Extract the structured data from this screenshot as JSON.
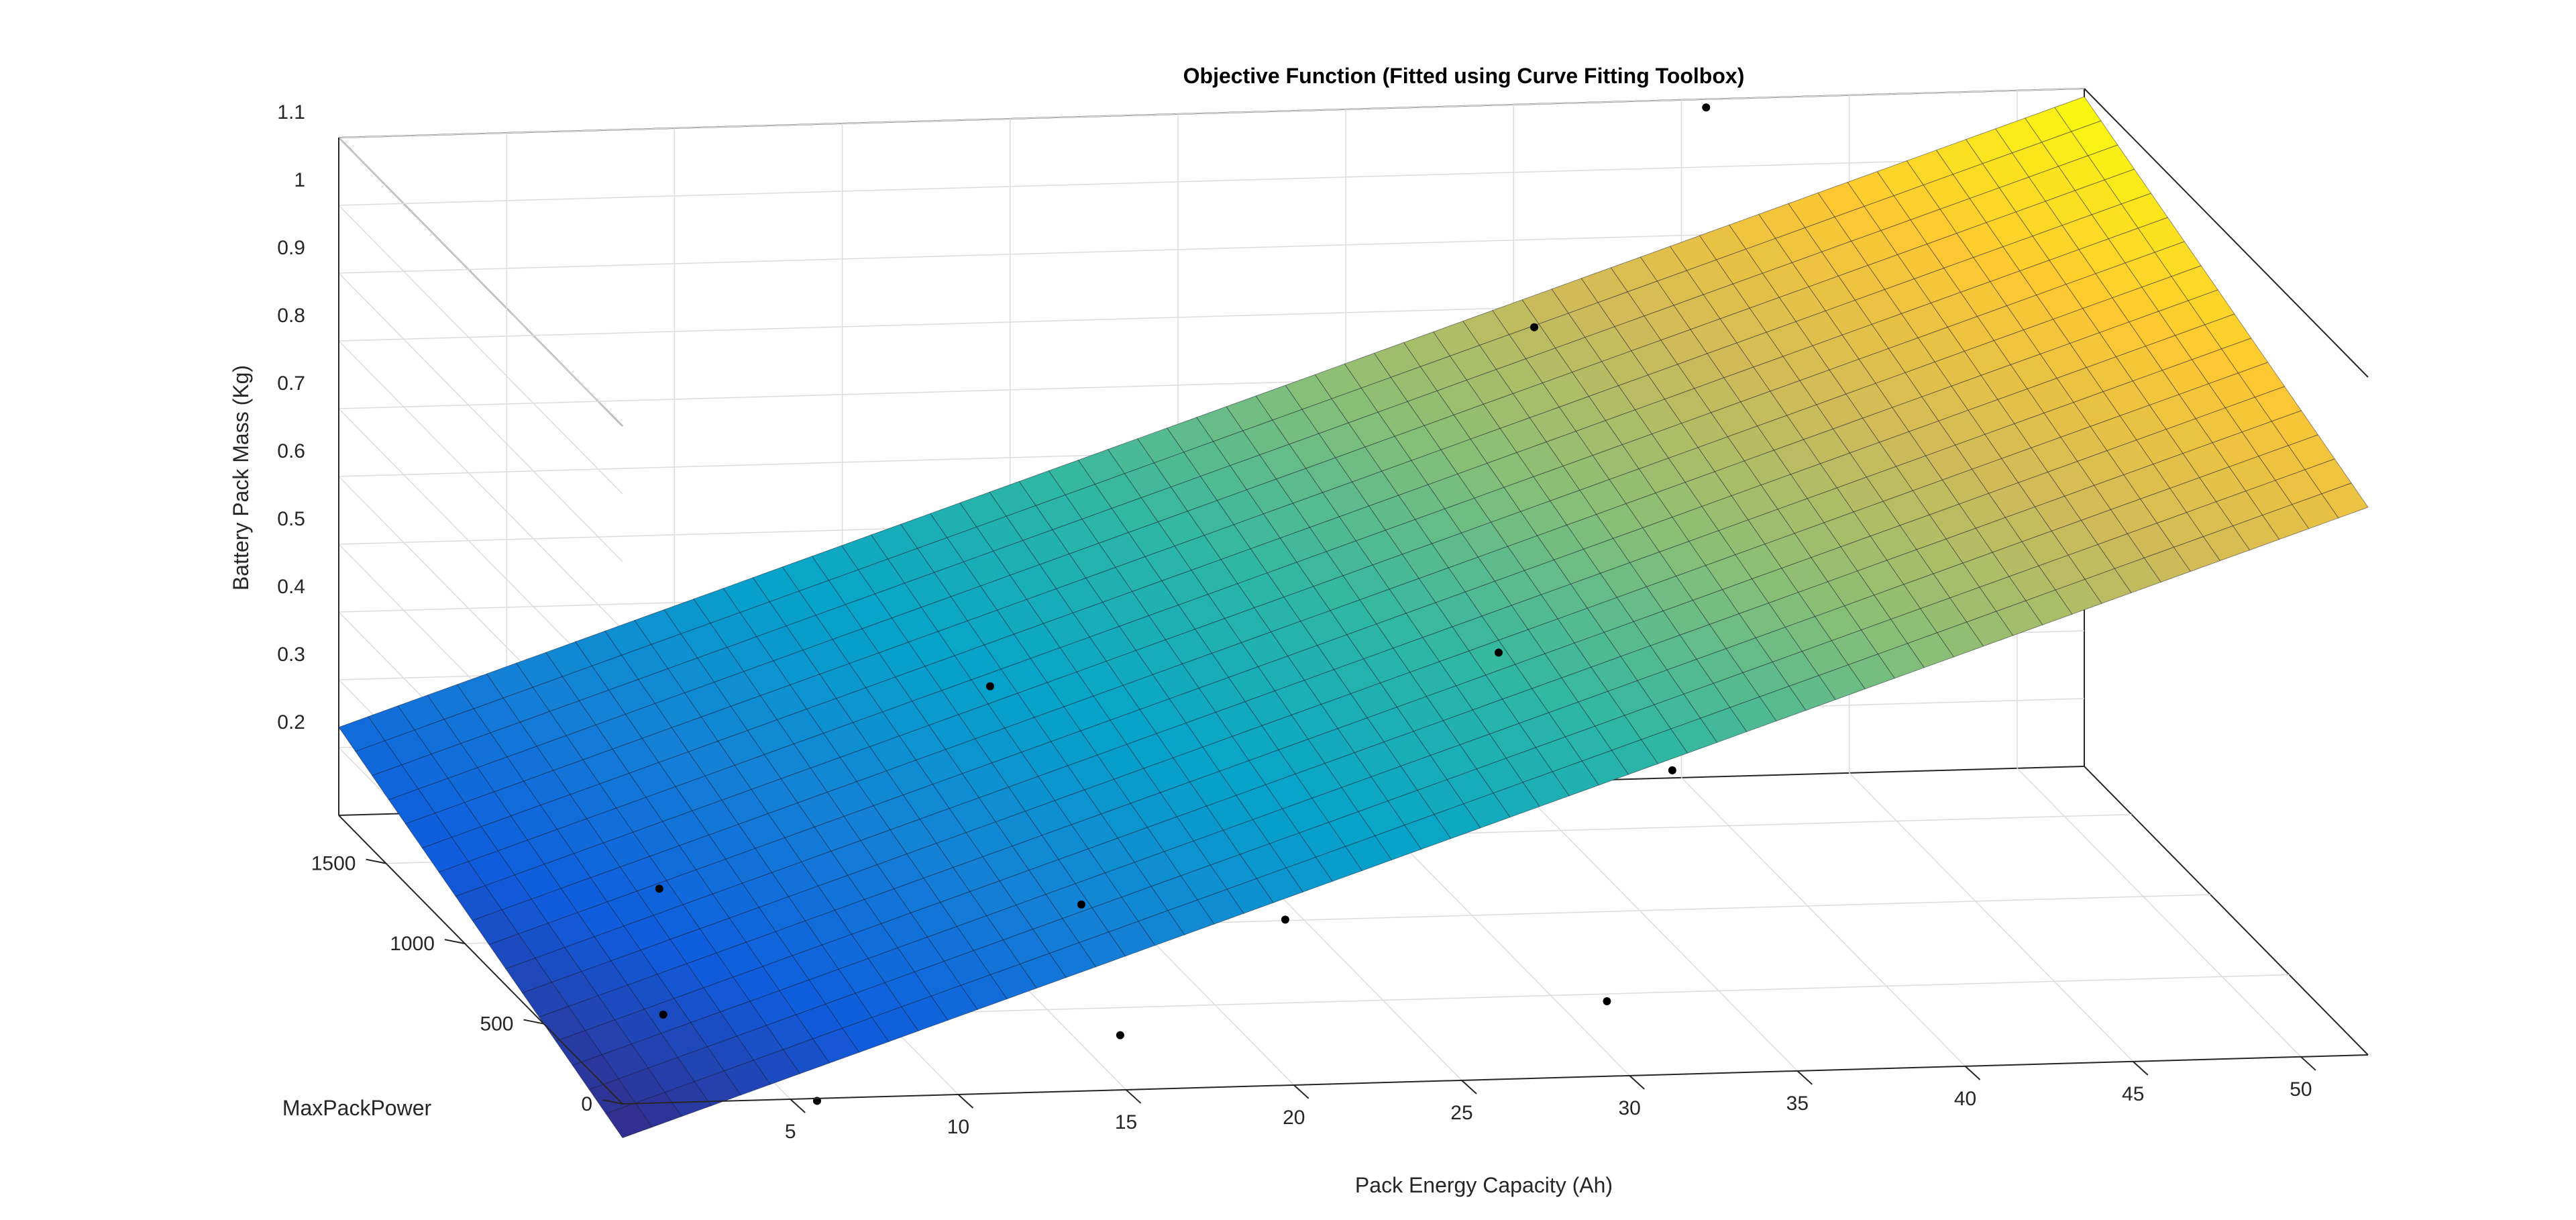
{
  "chart_data": {
    "type": "surface",
    "title": "Objective Function (Fitted using Curve Fitting Toolbox)",
    "xlabel": "Pack Energy Capacity (Ah)",
    "ylabel": "MaxPackPower",
    "zlabel": "Battery Pack Mass (Kg)",
    "xlim": [
      0,
      52
    ],
    "ylim": [
      0,
      1800
    ],
    "zlim": [
      0.1,
      1.1
    ],
    "x_ticks": [
      5,
      10,
      15,
      20,
      25,
      30,
      35,
      40,
      45,
      50
    ],
    "x_tick_labels": [
      "5",
      "10",
      "15",
      "20",
      "25",
      "30",
      "35",
      "40",
      "45",
      "50"
    ],
    "y_ticks": [
      0,
      500,
      1000,
      1500
    ],
    "y_tick_labels": [
      "0",
      "500",
      "1000",
      "1500"
    ],
    "z_ticks": [
      0.2,
      0.3,
      0.4,
      0.5,
      0.6,
      0.7,
      0.8,
      0.9,
      1.0,
      1.1
    ],
    "z_tick_labels": [
      "0.2",
      "0.3",
      "0.4",
      "0.5",
      "0.6",
      "0.7",
      "0.8",
      "0.9",
      "1",
      "1.1"
    ],
    "grid": true,
    "box": true,
    "colormap": "parula",
    "colormap_stops": [
      "#352a87",
      "#0f5cdd",
      "#1481d6",
      "#06a4ca",
      "#2eb7a4",
      "#87bf77",
      "#d1bb59",
      "#fec832",
      "#f9fb0e"
    ],
    "surface_fit": {
      "model": "linear",
      "z_at_origin": 0.05,
      "dz_dx": 0.0165,
      "dz_dy": 0.0001,
      "mesh_lines_x": 59,
      "mesh_lines_y": 17
    },
    "data_points": [
      {
        "x": 18.7,
        "y": 1650,
        "z": 0.3
      },
      {
        "x": 40.5,
        "y": 1750,
        "z": 1.1
      },
      {
        "x": 33.5,
        "y": 1350,
        "z": 0.88
      },
      {
        "x": 31.5,
        "y": 1150,
        "z": 0.45
      },
      {
        "x": 35.5,
        "y": 900,
        "z": 0.33
      },
      {
        "x": 7.2,
        "y": 1300,
        "z": 0.1
      },
      {
        "x": 18.6,
        "y": 1050,
        "z": 0.12
      },
      {
        "x": 23.5,
        "y": 800,
        "z": 0.15
      },
      {
        "x": 30.5,
        "y": 250,
        "z": 0.15
      },
      {
        "x": 16.0,
        "y": 250,
        "z": 0.12
      },
      {
        "x": 4.5,
        "y": 700,
        "z": 0.06
      },
      {
        "x": 6.5,
        "y": 150,
        "z": 0.06
      }
    ],
    "marker_color": "#000000"
  }
}
